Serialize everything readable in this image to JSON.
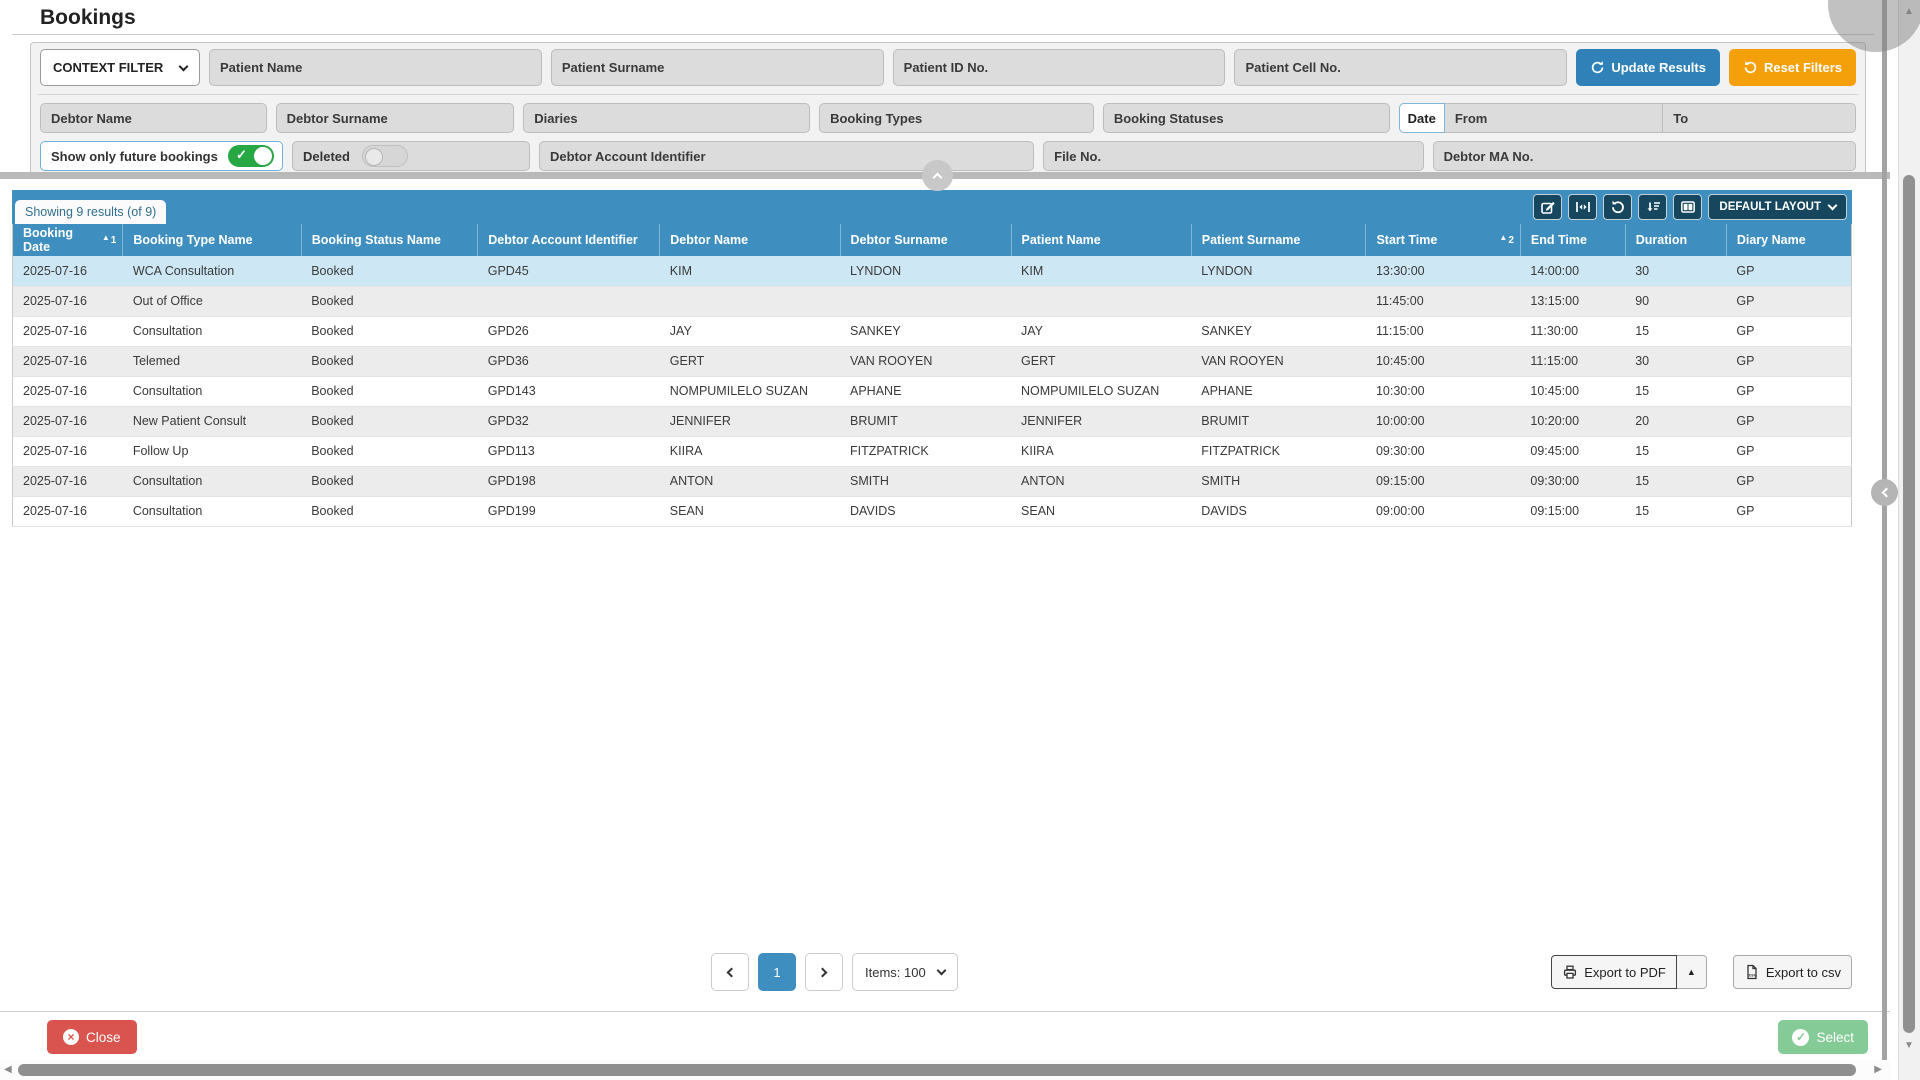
{
  "page": {
    "title": "Bookings"
  },
  "filters": {
    "context_filter": "CONTEXT FILTER",
    "patient_name": "Patient Name",
    "patient_surname": "Patient Surname",
    "patient_id": "Patient ID No.",
    "patient_cell": "Patient Cell No.",
    "update_button": "Update Results",
    "reset_button": "Reset Filters",
    "debtor_name": "Debtor Name",
    "debtor_surname": "Debtor Surname",
    "diaries": "Diaries",
    "booking_types": "Booking Types",
    "booking_statuses": "Booking Statuses",
    "date_label": "Date",
    "date_from": "From",
    "date_to": "To",
    "future_label": "Show only future bookings",
    "deleted_label": "Deleted",
    "debtor_account": "Debtor Account Identifier",
    "file_no": "File No.",
    "debtor_ma": "Debtor MA No."
  },
  "results": {
    "tab": "Showing 9 results (of 9)",
    "layout_button": "DEFAULT LAYOUT"
  },
  "table": {
    "selected_row_index": 0,
    "columns": [
      {
        "label": "Booking Date",
        "sort": "1"
      },
      {
        "label": "Booking Type Name"
      },
      {
        "label": "Booking Status Name"
      },
      {
        "label": "Debtor Account Identifier"
      },
      {
        "label": "Debtor Name"
      },
      {
        "label": "Debtor Surname"
      },
      {
        "label": "Patient Name"
      },
      {
        "label": "Patient Surname"
      },
      {
        "label": "Start Time",
        "sort": "2"
      },
      {
        "label": "End Time"
      },
      {
        "label": "Duration"
      },
      {
        "label": "Diary Name"
      }
    ],
    "rows": [
      [
        "2025-07-16",
        "WCA Consultation",
        "Booked",
        "GPD45",
        "KIM",
        "LYNDON",
        "KIM",
        "LYNDON",
        "13:30:00",
        "14:00:00",
        "30",
        "GP"
      ],
      [
        "2025-07-16",
        "Out of Office",
        "Booked",
        "",
        "",
        "",
        "",
        "",
        "11:45:00",
        "13:15:00",
        "90",
        "GP"
      ],
      [
        "2025-07-16",
        "Consultation",
        "Booked",
        "GPD26",
        "JAY",
        "SANKEY",
        "JAY",
        "SANKEY",
        "11:15:00",
        "11:30:00",
        "15",
        "GP"
      ],
      [
        "2025-07-16",
        "Telemed",
        "Booked",
        "GPD36",
        "GERT",
        "VAN ROOYEN",
        "GERT",
        "VAN ROOYEN",
        "10:45:00",
        "11:15:00",
        "30",
        "GP"
      ],
      [
        "2025-07-16",
        "Consultation",
        "Booked",
        "GPD143",
        "NOMPUMILELO SUZAN",
        "APHANE",
        "NOMPUMILELO SUZAN",
        "APHANE",
        "10:30:00",
        "10:45:00",
        "15",
        "GP"
      ],
      [
        "2025-07-16",
        "New Patient Consult",
        "Booked",
        "GPD32",
        "JENNIFER",
        "BRUMIT",
        "JENNIFER",
        "BRUMIT",
        "10:00:00",
        "10:20:00",
        "20",
        "GP"
      ],
      [
        "2025-07-16",
        "Follow Up",
        "Booked",
        "GPD113",
        "KIIRA",
        "FITZPATRICK",
        "KIIRA",
        "FITZPATRICK",
        "09:30:00",
        "09:45:00",
        "15",
        "GP"
      ],
      [
        "2025-07-16",
        "Consultation",
        "Booked",
        "GPD198",
        "ANTON",
        "SMITH",
        "ANTON",
        "SMITH",
        "09:15:00",
        "09:30:00",
        "15",
        "GP"
      ],
      [
        "2025-07-16",
        "Consultation",
        "Booked",
        "GPD199",
        "SEAN",
        "DAVIDS",
        "SEAN",
        "DAVIDS",
        "09:00:00",
        "09:15:00",
        "15",
        "GP"
      ]
    ]
  },
  "pagination": {
    "page": "1",
    "items_label": "Items: 100"
  },
  "export": {
    "pdf": "Export to PDF",
    "csv": "Export to csv"
  },
  "footer": {
    "close": "Close",
    "select": "Select"
  },
  "colors": {
    "header_blue": "#3f8ec0",
    "toolbar_navy": "#17475f",
    "update_blue": "#2f81b7",
    "reset_orange": "#f4a00b",
    "close_red": "#d9534f",
    "select_green": "#85cb98",
    "selected_row": "#cde8f4",
    "toggle_green": "#28a745"
  }
}
